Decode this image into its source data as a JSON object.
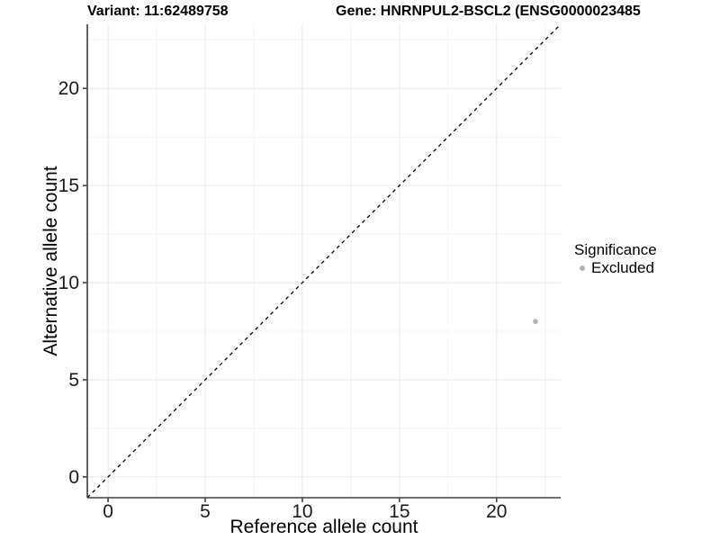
{
  "header": {
    "variant_title": "Variant: 11:62489758",
    "gene_title": "Gene: HNRNPUL2-BSCL2 (ENSG0000023485"
  },
  "axes": {
    "x": {
      "label": "Reference allele count"
    },
    "y": {
      "label": "Alternative allele count"
    }
  },
  "legend": {
    "title": "Significance",
    "position": "right",
    "items": [
      {
        "label": "Excluded",
        "color": "#b3b3b3"
      }
    ]
  },
  "chart_data": {
    "type": "scatter",
    "xlabel": "Reference allele count",
    "ylabel": "Alternative allele count",
    "xlim": [
      -1.07,
      23.3
    ],
    "ylim": [
      -1.07,
      23.3
    ],
    "x_ticks": [
      0,
      5,
      10,
      15,
      20
    ],
    "y_ticks": [
      0,
      5,
      10,
      15,
      20
    ],
    "x_minor_ticks": [
      2.5,
      7.5,
      12.5,
      17.5,
      22.5
    ],
    "y_minor_ticks": [
      2.5,
      7.5,
      12.5,
      17.5,
      22.5
    ],
    "grid": "major+minor",
    "legend_title": "Significance",
    "reference_line": {
      "type": "identity",
      "slope": 1,
      "intercept": 0,
      "style": "dashed",
      "color": "#000000"
    },
    "series": [
      {
        "name": "Excluded",
        "color": "#b3b3b3",
        "points": [
          {
            "x": 22,
            "y": 8
          }
        ]
      }
    ]
  },
  "colors": {
    "background": "#ffffff",
    "axis_line": "#404040",
    "grid_major": "#e9e9e9",
    "grid_minor": "#f4f4f4",
    "tick_text": "#1a1a1a",
    "point": "#b3b3b3"
  }
}
